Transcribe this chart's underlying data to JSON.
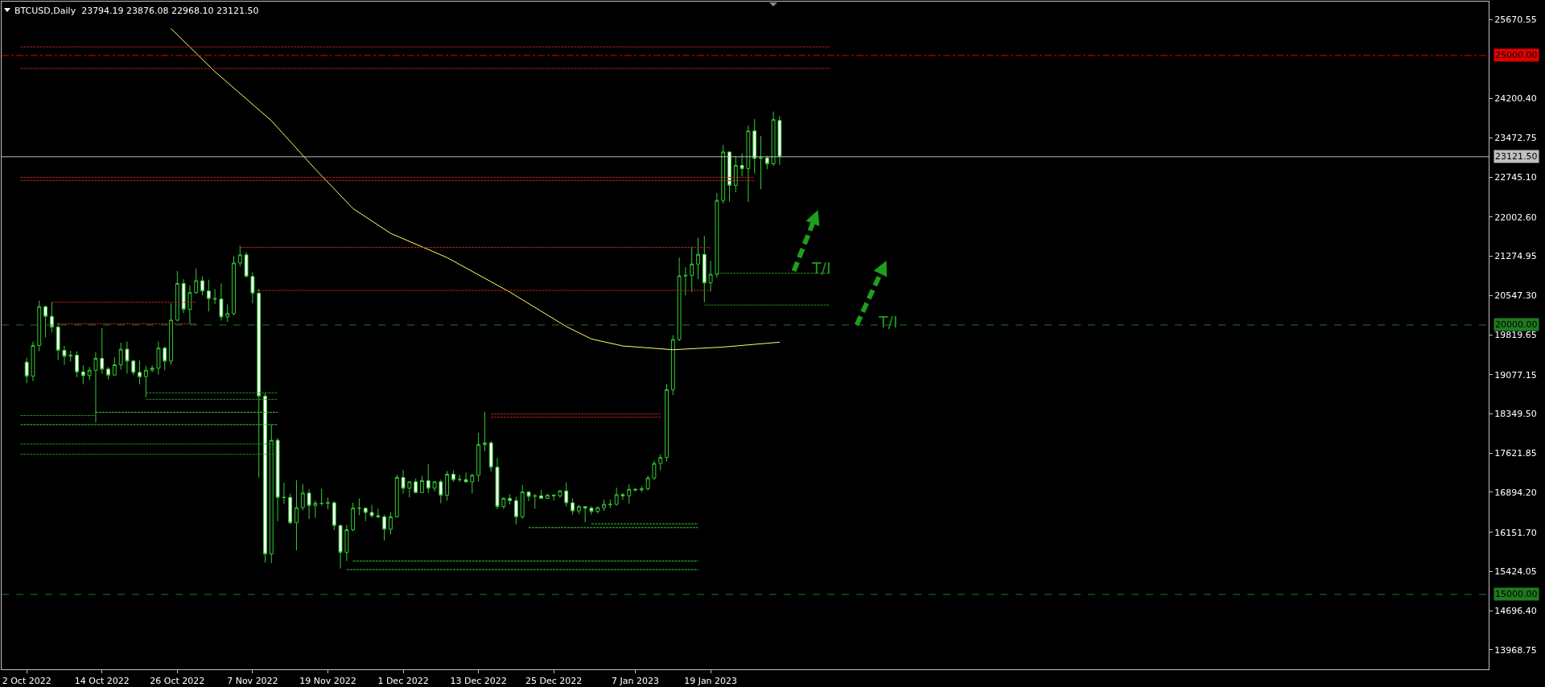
{
  "chart_data": {
    "type": "candlestick",
    "title": "BTCUSD,Daily  23794.19 23876.08 22968.10 23121.50",
    "color": "#32cd32",
    "x": [
      "2022-10-02",
      "2022-10-03",
      "2022-10-04",
      "2022-10-05",
      "2022-10-06",
      "2022-10-07",
      "2022-10-08",
      "2022-10-09",
      "2022-10-10",
      "2022-10-11",
      "2022-10-12",
      "2022-10-13",
      "2022-10-14",
      "2022-10-15",
      "2022-10-16",
      "2022-10-17",
      "2022-10-18",
      "2022-10-19",
      "2022-10-20",
      "2022-10-21",
      "2022-10-22",
      "2022-10-23",
      "2022-10-24",
      "2022-10-25",
      "2022-10-26",
      "2022-10-27",
      "2022-10-28",
      "2022-10-29",
      "2022-10-30",
      "2022-10-31",
      "2022-11-01",
      "2022-11-02",
      "2022-11-03",
      "2022-11-04",
      "2022-11-05",
      "2022-11-06",
      "2022-11-07",
      "2022-11-08",
      "2022-11-09",
      "2022-11-10",
      "2022-11-11",
      "2022-11-12",
      "2022-11-13",
      "2022-11-14",
      "2022-11-15",
      "2022-11-16",
      "2022-11-17",
      "2022-11-18",
      "2022-11-19",
      "2022-11-20",
      "2022-11-21",
      "2022-11-22",
      "2022-11-23",
      "2022-11-24",
      "2022-11-25",
      "2022-11-26",
      "2022-11-27",
      "2022-11-28",
      "2022-11-29",
      "2022-11-30",
      "2022-12-01",
      "2022-12-02",
      "2022-12-03",
      "2022-12-04",
      "2022-12-05",
      "2022-12-06",
      "2022-12-07",
      "2022-12-08",
      "2022-12-09",
      "2022-12-10",
      "2022-12-11",
      "2022-12-12",
      "2022-12-13",
      "2022-12-14",
      "2022-12-15",
      "2022-12-16",
      "2022-12-17",
      "2022-12-18",
      "2022-12-19",
      "2022-12-20",
      "2022-12-21",
      "2022-12-22",
      "2022-12-23",
      "2022-12-24",
      "2022-12-25",
      "2022-12-26",
      "2022-12-27",
      "2022-12-28",
      "2022-12-29",
      "2022-12-30",
      "2022-12-31",
      "2023-01-01",
      "2023-01-02",
      "2023-01-03",
      "2023-01-04",
      "2023-01-05",
      "2023-01-06",
      "2023-01-07",
      "2023-01-08",
      "2023-01-09",
      "2023-01-10",
      "2023-01-11",
      "2023-01-12",
      "2023-01-13",
      "2023-01-14",
      "2023-01-15",
      "2023-01-16",
      "2023-01-17",
      "2023-01-18",
      "2023-01-19",
      "2023-01-20",
      "2023-01-21",
      "2023-01-22",
      "2023-01-23",
      "2023-01-24",
      "2023-01-25",
      "2023-01-26",
      "2023-01-27",
      "2023-01-28",
      "2023-01-29",
      "2023-01-30"
    ],
    "ohlc": [
      [
        19310,
        19390,
        18920,
        19050
      ],
      [
        19050,
        19690,
        18960,
        19620
      ],
      [
        19620,
        20450,
        19510,
        20340
      ],
      [
        20340,
        20360,
        19770,
        20160
      ],
      [
        20160,
        20430,
        19860,
        19960
      ],
      [
        19960,
        20040,
        19350,
        19530
      ],
      [
        19530,
        19610,
        19260,
        19420
      ],
      [
        19420,
        19520,
        19320,
        19440
      ],
      [
        19440,
        19510,
        19030,
        19130
      ],
      [
        19130,
        19250,
        18900,
        19060
      ],
      [
        19060,
        19220,
        18980,
        19160
      ],
      [
        19160,
        19500,
        18190,
        19380
      ],
      [
        19380,
        19940,
        19090,
        19180
      ],
      [
        19180,
        19220,
        18990,
        19070
      ],
      [
        19070,
        19400,
        19070,
        19260
      ],
      [
        19260,
        19670,
        19170,
        19550
      ],
      [
        19550,
        19690,
        19100,
        19330
      ],
      [
        19330,
        19350,
        19070,
        19120
      ],
      [
        19120,
        19340,
        18900,
        19040
      ],
      [
        19040,
        19240,
        18660,
        19160
      ],
      [
        19160,
        19250,
        19120,
        19200
      ],
      [
        19200,
        19690,
        19080,
        19570
      ],
      [
        19570,
        19600,
        19160,
        19330
      ],
      [
        19330,
        20400,
        19260,
        20090
      ],
      [
        20090,
        21000,
        20070,
        20770
      ],
      [
        20770,
        20850,
        20220,
        20290
      ],
      [
        20290,
        20730,
        20030,
        20600
      ],
      [
        20600,
        21050,
        20580,
        20820
      ],
      [
        20820,
        20900,
        20550,
        20630
      ],
      [
        20630,
        20840,
        20250,
        20490
      ],
      [
        20490,
        20660,
        20390,
        20480
      ],
      [
        20480,
        20770,
        20080,
        20150
      ],
      [
        20150,
        20380,
        20060,
        20210
      ],
      [
        20210,
        21280,
        20180,
        21150
      ],
      [
        21150,
        21470,
        21090,
        21300
      ],
      [
        21300,
        21350,
        20890,
        20900
      ],
      [
        20900,
        20980,
        20400,
        20590
      ],
      [
        20590,
        20670,
        17170,
        18680
      ],
      [
        18680,
        18740,
        15590,
        15750
      ],
      [
        15750,
        18150,
        15580,
        17860
      ],
      [
        17860,
        17900,
        16360,
        16800
      ],
      [
        16800,
        17070,
        16680,
        16800
      ],
      [
        16800,
        16870,
        16300,
        16330
      ],
      [
        16330,
        17120,
        15820,
        16610
      ],
      [
        16610,
        17050,
        16560,
        16880
      ],
      [
        16880,
        16950,
        16400,
        16650
      ],
      [
        16650,
        16740,
        16420,
        16690
      ],
      [
        16690,
        16960,
        16650,
        16690
      ],
      [
        16690,
        16800,
        16580,
        16700
      ],
      [
        16700,
        16730,
        16190,
        16280
      ],
      [
        16280,
        16290,
        15480,
        15780
      ],
      [
        15780,
        16290,
        15620,
        16200
      ],
      [
        16200,
        16700,
        16170,
        16600
      ],
      [
        16600,
        16780,
        16470,
        16600
      ],
      [
        16600,
        16600,
        16360,
        16520
      ],
      [
        16520,
        16660,
        16420,
        16460
      ],
      [
        16460,
        16590,
        16410,
        16440
      ],
      [
        16440,
        16480,
        16000,
        16210
      ],
      [
        16210,
        16530,
        16110,
        16440
      ],
      [
        16440,
        17220,
        16430,
        17170
      ],
      [
        17170,
        17310,
        16870,
        16970
      ],
      [
        16970,
        17100,
        16800,
        17090
      ],
      [
        17090,
        17150,
        16880,
        16890
      ],
      [
        16890,
        17200,
        16880,
        17110
      ],
      [
        17110,
        17420,
        16880,
        16970
      ],
      [
        16970,
        17100,
        16910,
        17090
      ],
      [
        17090,
        17130,
        16690,
        16840
      ],
      [
        16840,
        17290,
        16740,
        17230
      ],
      [
        17230,
        17300,
        17090,
        17130
      ],
      [
        17130,
        17220,
        17090,
        17130
      ],
      [
        17130,
        17260,
        17070,
        17090
      ],
      [
        17090,
        17240,
        16870,
        17210
      ],
      [
        17210,
        18000,
        17090,
        17780
      ],
      [
        17780,
        18390,
        17660,
        17810
      ],
      [
        17810,
        17850,
        17280,
        17360
      ],
      [
        17360,
        17530,
        16580,
        16630
      ],
      [
        16630,
        16800,
        16590,
        16780
      ],
      [
        16780,
        16860,
        16670,
        16740
      ],
      [
        16740,
        16810,
        16300,
        16440
      ],
      [
        16440,
        17030,
        16400,
        16900
      ],
      [
        16900,
        16910,
        16730,
        16820
      ],
      [
        16820,
        16860,
        16590,
        16830
      ],
      [
        16830,
        16940,
        16780,
        16780
      ],
      [
        16780,
        16870,
        16770,
        16840
      ],
      [
        16840,
        16860,
        16740,
        16830
      ],
      [
        16830,
        16940,
        16790,
        16920
      ],
      [
        16920,
        17080,
        16630,
        16700
      ],
      [
        16700,
        16780,
        16480,
        16550
      ],
      [
        16550,
        16660,
        16490,
        16630
      ],
      [
        16630,
        16640,
        16340,
        16600
      ],
      [
        16600,
        16640,
        16480,
        16540
      ],
      [
        16540,
        16630,
        16500,
        16610
      ],
      [
        16610,
        16760,
        16550,
        16670
      ],
      [
        16670,
        16760,
        16600,
        16670
      ],
      [
        16670,
        16980,
        16650,
        16850
      ],
      [
        16850,
        16880,
        16750,
        16830
      ],
      [
        16830,
        17040,
        16680,
        16950
      ],
      [
        16950,
        16970,
        16910,
        16940
      ],
      [
        16940,
        17010,
        16900,
        16960
      ],
      [
        16960,
        17200,
        16930,
        17160
      ],
      [
        17160,
        17480,
        17120,
        17430
      ],
      [
        17430,
        17600,
        17300,
        17540
      ],
      [
        17540,
        18900,
        17470,
        18800
      ],
      [
        18800,
        19810,
        18700,
        19730
      ],
      [
        19730,
        21250,
        19700,
        20910
      ],
      [
        20910,
        21070,
        20550,
        20920
      ],
      [
        20920,
        21460,
        20610,
        21130
      ],
      [
        21130,
        21620,
        20850,
        21310
      ],
      [
        21310,
        21650,
        20420,
        20780
      ],
      [
        20780,
        21190,
        20620,
        20940
      ],
      [
        20940,
        22450,
        20880,
        22310
      ],
      [
        22310,
        23340,
        22250,
        23210
      ],
      [
        23210,
        23220,
        22290,
        22590
      ],
      [
        22590,
        23120,
        22460,
        22960
      ],
      [
        22960,
        23180,
        22760,
        22900
      ],
      [
        22900,
        23700,
        22280,
        23600
      ],
      [
        23600,
        23820,
        22810,
        23090
      ],
      [
        23090,
        23510,
        22520,
        23100
      ],
      [
        23100,
        23140,
        22890,
        22990
      ],
      [
        22990,
        23960,
        22950,
        23810
      ],
      [
        23794.19,
        23876.08,
        22968.1,
        23121.5
      ]
    ],
    "series": [
      {
        "type": "line",
        "color": "#ffff66",
        "line_style": "solid",
        "x": [
          "2022-10-25",
          "2022-11-01",
          "2022-11-10",
          "2022-11-17",
          "2022-11-23",
          "2022-11-29",
          "2022-12-08",
          "2022-12-18",
          "2022-12-27",
          "2022-12-31",
          "2023-01-05",
          "2023-01-13",
          "2023-01-21",
          "2023-01-30"
        ],
        "values": [
          25500,
          24700,
          23790,
          22890,
          22160,
          21700,
          21250,
          20610,
          19970,
          19740,
          19610,
          19540,
          19590,
          19680
        ]
      },
      {
        "type": "line",
        "color": "#b22222",
        "line_style": "dotted",
        "x": [
          "2022-10-01",
          "2023-02-07"
        ],
        "values": [
          25160,
          25160
        ]
      },
      {
        "type": "line",
        "color": "#b22222",
        "line_style": "dotted",
        "x": [
          "2022-10-01",
          "2023-02-07"
        ],
        "values": [
          24760,
          24760
        ]
      },
      {
        "type": "line",
        "color": "#b22222",
        "line_style": "dotted",
        "x": [
          "2022-10-01",
          "2023-01-26"
        ],
        "values": [
          22740,
          22740
        ]
      },
      {
        "type": "line",
        "color": "#b22222",
        "line_style": "dotted",
        "x": [
          "2022-10-01",
          "2023-01-26"
        ],
        "values": [
          22680,
          22680
        ]
      },
      {
        "type": "line",
        "color": "#b22222",
        "line_style": "dotted",
        "x": [
          "2022-11-05",
          "2023-01-19"
        ],
        "values": [
          21440,
          21440
        ]
      },
      {
        "type": "line",
        "color": "#b22222",
        "line_style": "dotted",
        "x": [
          "2022-11-07T12:00",
          "2023-01-19"
        ],
        "values": [
          20640,
          20640
        ]
      },
      {
        "type": "line",
        "color": "#b22222",
        "line_style": "dotted",
        "x": [
          "2022-10-06",
          "2022-10-29"
        ],
        "values": [
          20420,
          20420
        ]
      },
      {
        "type": "line",
        "color": "#b22222",
        "line_style": "dotted",
        "x": [
          "2022-10-07",
          "2022-10-29"
        ],
        "values": [
          20020,
          20020
        ]
      },
      {
        "type": "line",
        "color": "#b22222",
        "line_style": "dotted",
        "x": [
          "2022-12-15",
          "2023-01-11"
        ],
        "values": [
          18350,
          18350
        ]
      },
      {
        "type": "line",
        "color": "#b22222",
        "line_style": "dotted",
        "x": [
          "2022-12-15",
          "2023-01-11"
        ],
        "values": [
          18290,
          18290
        ]
      },
      {
        "type": "line",
        "color": "#228b22",
        "line_style": "dotted",
        "x": [
          "2023-01-20",
          "2023-02-07"
        ],
        "values": [
          20960,
          20960
        ]
      },
      {
        "type": "line",
        "color": "#228b22",
        "line_style": "dotted",
        "x": [
          "2023-01-18",
          "2023-02-07"
        ],
        "values": [
          20370,
          20370
        ]
      },
      {
        "type": "line",
        "color": "#32cd32",
        "line_style": "dotted",
        "x": [
          "2022-12-31",
          "2023-01-17"
        ],
        "values": [
          16310,
          16310
        ]
      },
      {
        "type": "line",
        "color": "#32cd32",
        "line_style": "dotted",
        "x": [
          "2022-12-21",
          "2023-01-17"
        ],
        "values": [
          16240,
          16240
        ]
      },
      {
        "type": "line",
        "color": "#32cd32",
        "line_style": "dotted",
        "x": [
          "2022-11-23",
          "2023-01-17"
        ],
        "values": [
          15620,
          15620
        ]
      },
      {
        "type": "line",
        "color": "#32cd32",
        "line_style": "dotted",
        "x": [
          "2022-11-22",
          "2023-01-17"
        ],
        "values": [
          15460,
          15460
        ]
      },
      {
        "type": "line",
        "color": "#228b22",
        "line_style": "dotted",
        "x": [
          "2022-10-21",
          "2022-11-11"
        ],
        "values": [
          18740,
          18740
        ]
      },
      {
        "type": "line",
        "color": "#228b22",
        "line_style": "dotted",
        "x": [
          "2022-10-21",
          "2022-11-11"
        ],
        "values": [
          18620,
          18620
        ]
      },
      {
        "type": "line",
        "color": "#32cd32",
        "line_style": "dotted",
        "x": [
          "2022-10-13",
          "2022-11-11"
        ],
        "values": [
          18380,
          18380
        ]
      },
      {
        "type": "line",
        "color": "#228b22",
        "line_style": "dotted",
        "x": [
          "2022-10-01",
          "2022-10-13"
        ],
        "values": [
          18320,
          18320
        ]
      },
      {
        "type": "line",
        "color": "#32cd32",
        "line_style": "dotted",
        "x": [
          "2022-10-01",
          "2022-11-11"
        ],
        "values": [
          18150,
          18150
        ]
      },
      {
        "type": "line",
        "color": "#228b22",
        "line_style": "dotted",
        "x": [
          "2022-10-01",
          "2022-11-11"
        ],
        "values": [
          17790,
          17790
        ]
      },
      {
        "type": "line",
        "color": "#228b22",
        "line_style": "dotted",
        "x": [
          "2022-10-01",
          "2022-11-11"
        ],
        "values": [
          17600,
          17600
        ]
      }
    ],
    "ref_lines": [
      {
        "axis": "y",
        "value": 25000,
        "label": "25000.00",
        "color": "#e00000",
        "line_style": "dashdot"
      },
      {
        "axis": "y",
        "value": 23121.5,
        "label": "23121.50",
        "color": "#c0c0c0",
        "line_style": "solid"
      },
      {
        "axis": "y",
        "value": 20000,
        "label": "20000.00",
        "color": "#1f7a1f",
        "line_style": "dashed"
      },
      {
        "axis": "y",
        "value": 15000,
        "label": "15000.00",
        "color": "#1f7a1f",
        "line_style": "dashed"
      }
    ],
    "annotations": [
      "T/I",
      "T/I"
    ],
    "xlim": [
      "2022-09-28",
      "2023-05-23"
    ],
    "xticks": [
      {
        "value": "2022-10-02",
        "label": "2 Oct 2022"
      },
      {
        "value": "2022-10-14",
        "label": "14 Oct 2022"
      },
      {
        "value": "2022-10-26",
        "label": "26 Oct 2022"
      },
      {
        "value": "2022-11-07",
        "label": "7 Nov 2022"
      },
      {
        "value": "2022-11-19",
        "label": "19 Nov 2022"
      },
      {
        "value": "2022-12-01",
        "label": "1 Dec 2022"
      },
      {
        "value": "2022-12-13",
        "label": "13 Dec 2022"
      },
      {
        "value": "2022-12-25",
        "label": "25 Dec 2022"
      },
      {
        "value": "2023-01-07",
        "label": "7 Jan 2023"
      },
      {
        "value": "2023-01-19",
        "label": "19 Jan 2023"
      }
    ],
    "ylim": [
      13610,
      26000
    ],
    "yticks": [
      {
        "value": 25670.55,
        "label": "25670.55"
      },
      {
        "value": 24200.4,
        "label": "24200.40"
      },
      {
        "value": 23472.75,
        "label": "23472.75"
      },
      {
        "value": 22745.1,
        "label": "22745.10"
      },
      {
        "value": 22002.6,
        "label": "22002.60"
      },
      {
        "value": 21274.95,
        "label": "21274.95"
      },
      {
        "value": 20547.3,
        "label": "20547.30"
      },
      {
        "value": 19819.65,
        "label": "19819.65"
      },
      {
        "value": 19077.15,
        "label": "19077.15"
      },
      {
        "value": 18349.5,
        "label": "18349.50"
      },
      {
        "value": 17621.85,
        "label": "17621.85"
      },
      {
        "value": 16894.2,
        "label": "16894.20"
      },
      {
        "value": 16151.7,
        "label": "16151.70"
      },
      {
        "value": 15424.05,
        "label": "15424.05"
      },
      {
        "value": 14696.4,
        "label": "14696.40"
      },
      {
        "value": 13968.75,
        "label": "13968.75"
      }
    ],
    "grid": false
  }
}
